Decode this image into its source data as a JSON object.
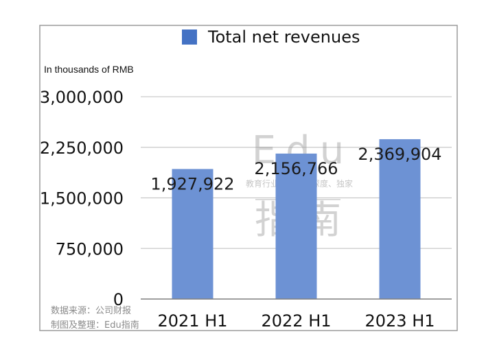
{
  "chart_data": {
    "type": "bar",
    "categories": [
      "2021 H1",
      "2022 H1",
      "2023 H1"
    ],
    "series": [
      {
        "name": "Total net revenues",
        "values": [
          1927922,
          2156766,
          2369904
        ],
        "color": "#6d92d4",
        "legend_color": "#4472c4"
      }
    ],
    "data_labels": [
      "1,927,922",
      "2,156,766",
      "2,369,904"
    ],
    "unit_label": "In thousands of RMB",
    "ylim": [
      0,
      3000000
    ],
    "yticks": [
      0,
      750000,
      1500000,
      2250000,
      3000000
    ],
    "ytick_labels": [
      "0",
      "750,000",
      "1,500,000",
      "2,250,000",
      "3,000,000"
    ],
    "grid": true,
    "legend_position": "top"
  },
  "source_note": [
    "数据来源：公司财报",
    "制图及整理：Edu指南"
  ],
  "watermark": {
    "logo_text": "Edu",
    "tagline": "教育行业，前沿、深度、独家",
    "logo_cn": "指南"
  }
}
